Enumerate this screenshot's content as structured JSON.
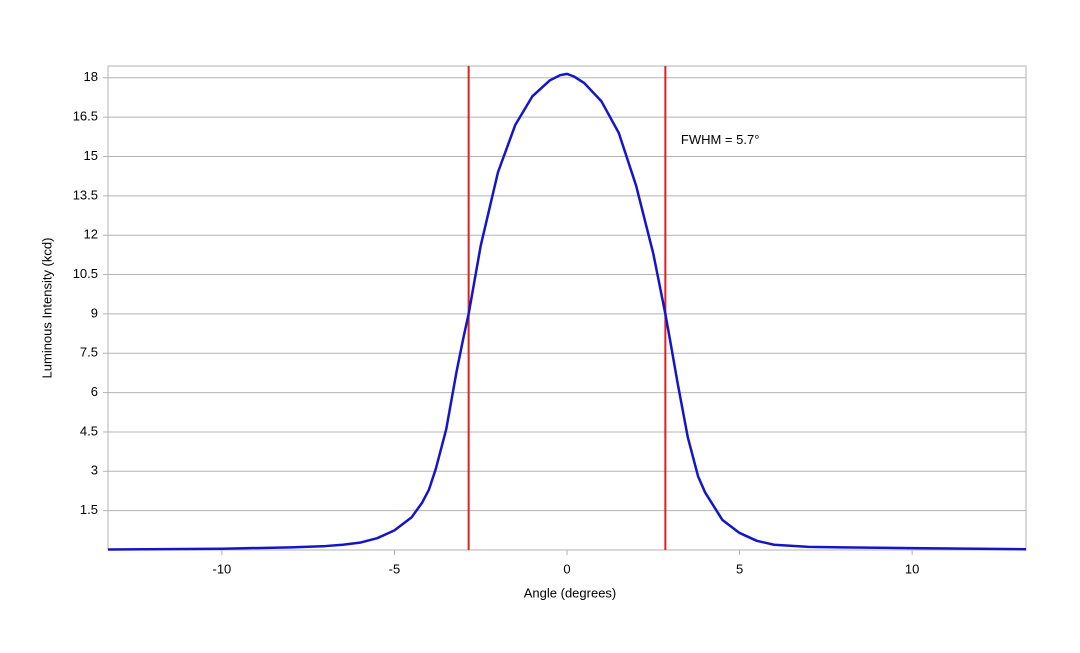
{
  "chart_data": {
    "type": "line",
    "x_label": "Angle (degrees)",
    "y_label": "Luminous Intensity (kcd)",
    "annotation": {
      "text": "FWHM = 5.7°",
      "x": 3.3,
      "y": 15.6
    },
    "vlines": [
      -2.85,
      2.85
    ],
    "vline_color": "#e02020",
    "xlim": [
      -13.3,
      13.3
    ],
    "ylim": [
      0,
      18.45
    ],
    "xticks": [
      -10,
      -5,
      0,
      5,
      10
    ],
    "yticks": [
      1.5,
      3,
      4.5,
      6,
      7.5,
      9,
      10.5,
      12,
      13.5,
      15,
      16.5,
      18
    ],
    "grid": true,
    "series": [
      {
        "color": "#1515c8",
        "x": [
          -13.3,
          -10,
          -8,
          -7,
          -6.5,
          -6,
          -5.5,
          -5,
          -4.5,
          -4.2,
          -4,
          -3.8,
          -3.5,
          -3.2,
          -3,
          -2.85,
          -2.5,
          -2,
          -1.5,
          -1,
          -0.5,
          -0.2,
          0,
          0.2,
          0.5,
          1,
          1.5,
          2,
          2.5,
          2.85,
          3,
          3.2,
          3.5,
          3.8,
          4,
          4.5,
          5,
          5.5,
          6,
          7,
          8,
          10,
          13.3
        ],
        "values": [
          0.02,
          0.05,
          0.1,
          0.15,
          0.2,
          0.28,
          0.45,
          0.75,
          1.25,
          1.8,
          2.3,
          3.1,
          4.6,
          6.8,
          8.1,
          9,
          11.6,
          14.4,
          16.2,
          17.3,
          17.9,
          18.1,
          18.15,
          18.05,
          17.8,
          17.1,
          15.9,
          13.9,
          11.3,
          9,
          7.9,
          6.4,
          4.3,
          2.8,
          2.2,
          1.15,
          0.65,
          0.35,
          0.2,
          0.12,
          0.1,
          0.07,
          0.03
        ]
      }
    ]
  }
}
